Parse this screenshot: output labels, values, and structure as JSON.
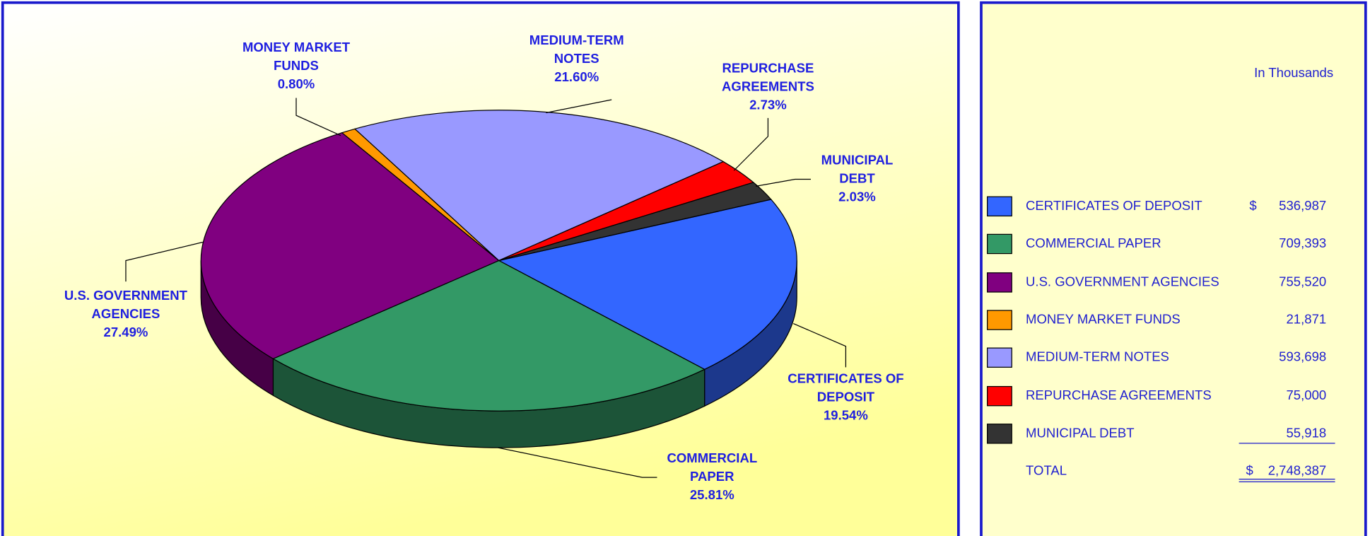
{
  "chart_data": {
    "type": "pie",
    "categories": [
      "CERTIFICATES OF DEPOSIT",
      "COMMERCIAL PAPER",
      "U.S. GOVERNMENT AGENCIES",
      "MONEY MARKET FUNDS",
      "MEDIUM-TERM NOTES",
      "REPURCHASE AGREEMENTS",
      "MUNICIPAL DEBT"
    ],
    "values": [
      19.54,
      25.81,
      27.49,
      0.8,
      21.6,
      2.73,
      2.03
    ],
    "value_labels": [
      "19.54%",
      "25.81%",
      "27.49%",
      "0.80%",
      "21.60%",
      "2.73%",
      "2.03%"
    ],
    "colors": [
      "#3366ff",
      "#339966",
      "#800080",
      "#ff9900",
      "#9999ff",
      "#ff0000",
      "#333333"
    ]
  },
  "table": {
    "title": "In Thousands",
    "currency": "$",
    "amounts": [
      "536,987",
      "709,393",
      "755,520",
      "21,871",
      "593,698",
      "75,000",
      "55,918"
    ],
    "total_label": "TOTAL",
    "total": "2,748,387"
  }
}
